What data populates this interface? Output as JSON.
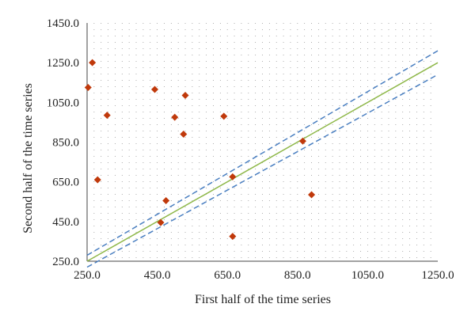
{
  "chart_data": {
    "type": "scatter",
    "xlabel": "First half of the time series",
    "ylabel": "Second half of the time series",
    "xlim": [
      250,
      1250
    ],
    "ylim": [
      250,
      1450
    ],
    "x_ticks": [
      "250.0",
      "450.0",
      "650.0",
      "850.0",
      "1050.0",
      "1250.0"
    ],
    "y_ticks": [
      "250.0",
      "450.0",
      "650.0",
      "850.0",
      "1050.0",
      "1250.0",
      "1450.0"
    ],
    "grid": "dotted",
    "marker_color": "#c0390b",
    "points": [
      {
        "x": 253,
        "y": 1125
      },
      {
        "x": 265,
        "y": 1250
      },
      {
        "x": 280,
        "y": 660
      },
      {
        "x": 307,
        "y": 985
      },
      {
        "x": 443,
        "y": 1115
      },
      {
        "x": 460,
        "y": 445
      },
      {
        "x": 475,
        "y": 555
      },
      {
        "x": 500,
        "y": 975
      },
      {
        "x": 525,
        "y": 890
      },
      {
        "x": 530,
        "y": 1085
      },
      {
        "x": 640,
        "y": 980
      },
      {
        "x": 665,
        "y": 675
      },
      {
        "x": 665,
        "y": 375
      },
      {
        "x": 865,
        "y": 855
      },
      {
        "x": 890,
        "y": 585
      }
    ],
    "lines": [
      {
        "style": "solid",
        "color": "#8fb84a",
        "points": [
          [
            250,
            250
          ],
          [
            1250,
            1250
          ]
        ]
      },
      {
        "style": "dashed",
        "color": "#4a7fc1",
        "points": [
          [
            250,
            280
          ],
          [
            1250,
            1310
          ]
        ]
      },
      {
        "style": "dashed",
        "color": "#4a7fc1",
        "points": [
          [
            250,
            220
          ],
          [
            1250,
            1190
          ]
        ]
      }
    ]
  }
}
